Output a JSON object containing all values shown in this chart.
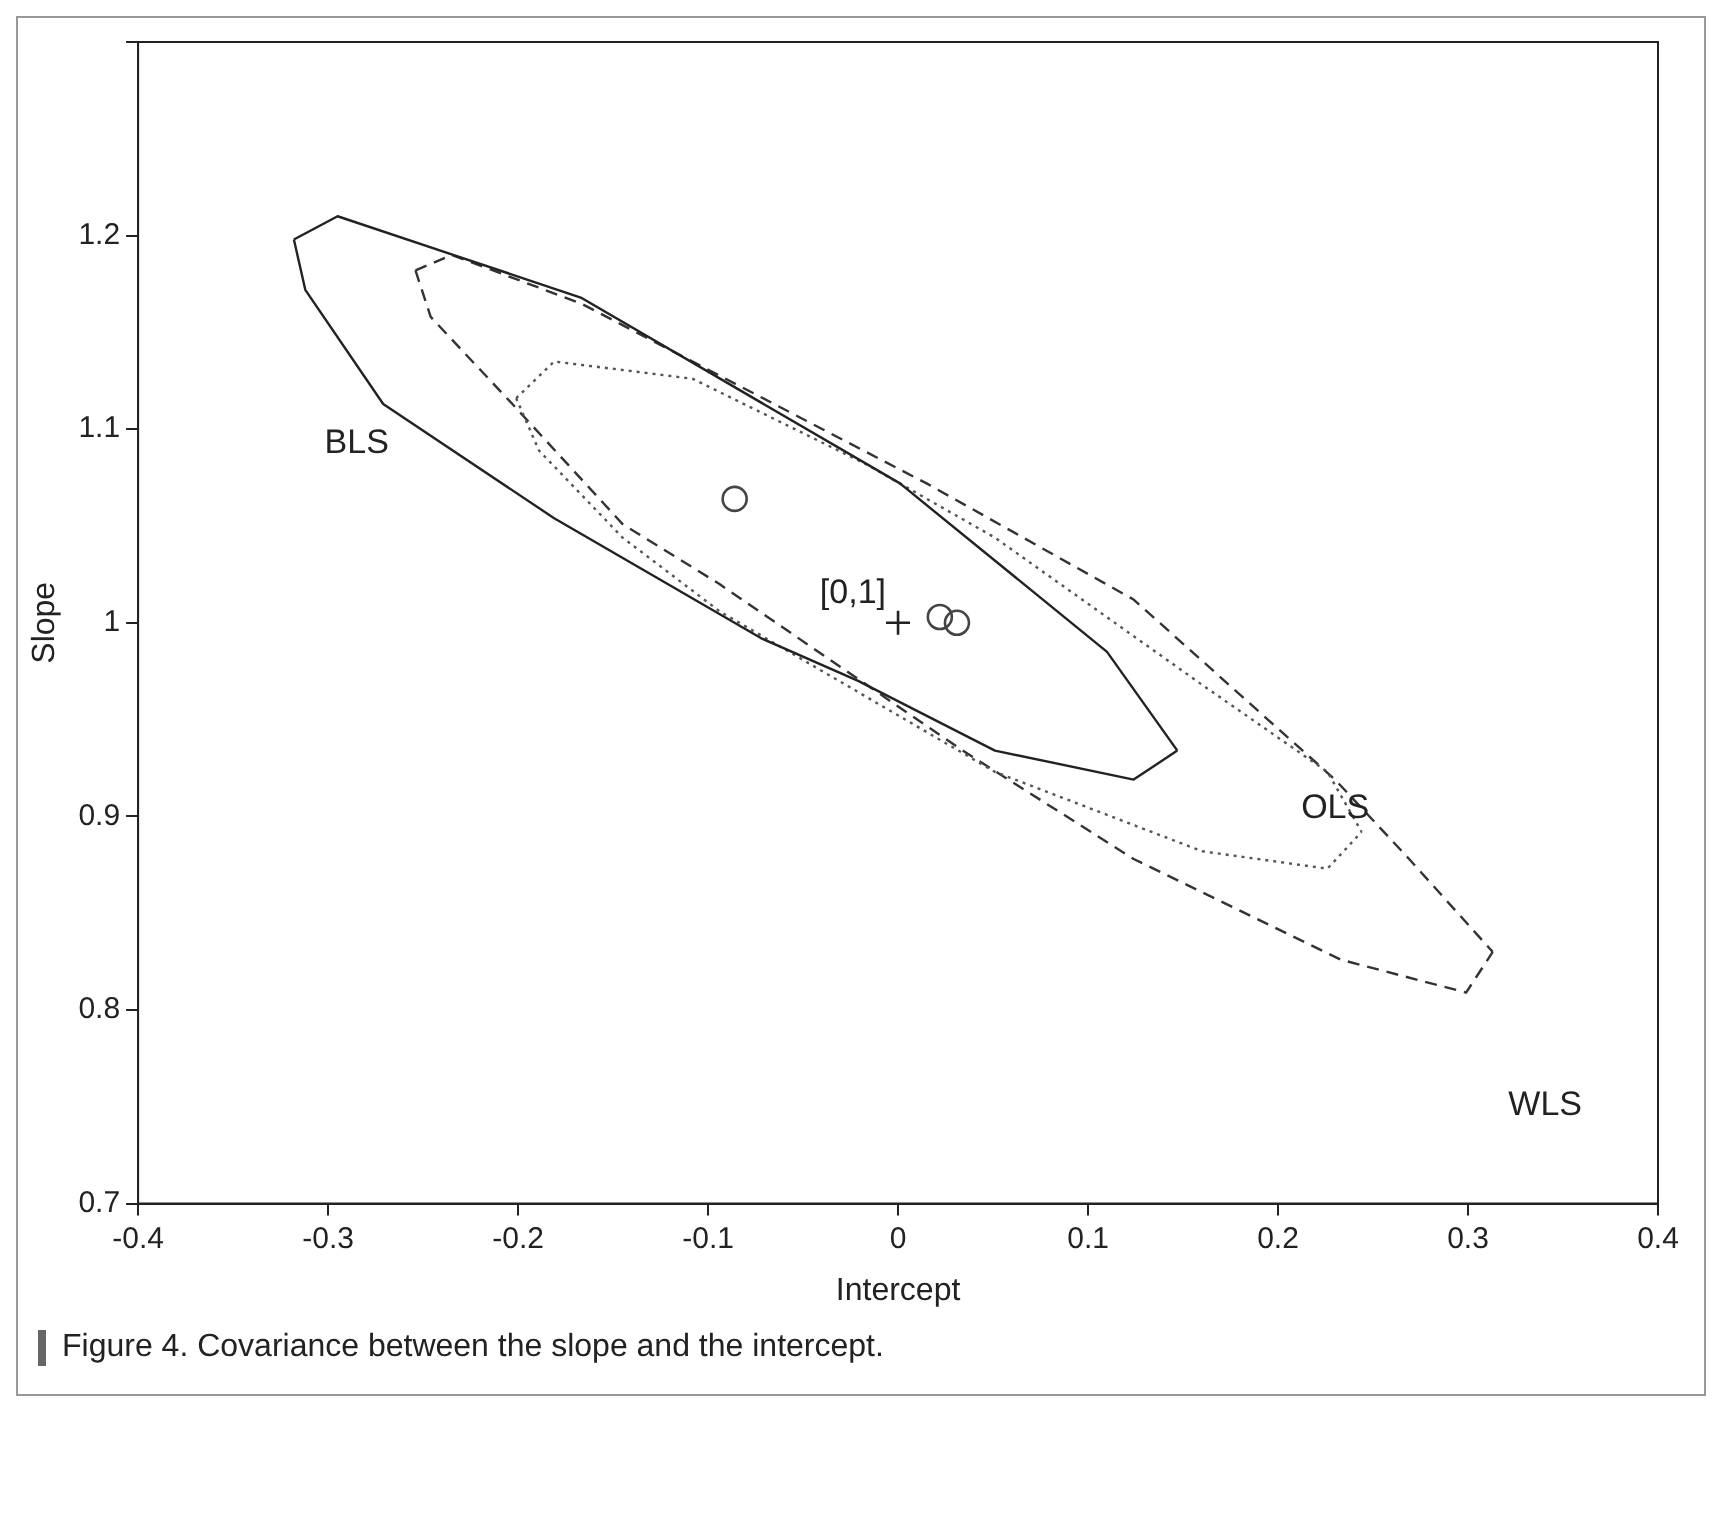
{
  "chart_data": {
    "type": "line",
    "xlabel": "Intercept",
    "ylabel": "Slope",
    "xlim": [
      -0.4,
      0.4
    ],
    "xticks": [
      -0.4,
      -0.3,
      -0.2,
      -0.1,
      0,
      0.1,
      0.2,
      0.3,
      0.4
    ],
    "ylim": [
      0.7,
      1.3
    ],
    "yticks": [
      0.7,
      0.8,
      0.9,
      1,
      1.1,
      1.2,
      {
        "value": 1.3,
        "label": null
      }
    ],
    "grid": false,
    "legend": false,
    "series": [
      {
        "line_style": "solid",
        "marker": "none",
        "color": "#222222",
        "x": [
          -0.318,
          -0.295,
          -0.167,
          0.001,
          0.11,
          0.147
        ],
        "values": [
          1.198,
          1.21,
          1.168,
          1.072,
          0.985,
          0.934
        ]
      },
      {
        "line_style": "solid",
        "marker": "none",
        "color": "#222222",
        "x": [
          -0.318,
          -0.312,
          -0.271,
          -0.181,
          -0.072,
          -0.021,
          0.051,
          0.124,
          0.147
        ],
        "values": [
          1.198,
          1.172,
          1.113,
          1.054,
          0.992,
          0.97,
          0.934,
          0.919,
          0.934
        ]
      },
      {
        "line_style": "dotted",
        "marker": "none",
        "color": "#555555",
        "x": [
          -0.201,
          -0.181,
          -0.108,
          -0.017,
          0.051,
          0.16,
          0.226,
          0.244
        ],
        "values": [
          1.116,
          1.135,
          1.126,
          1.082,
          1.044,
          0.968,
          0.923,
          0.892
        ]
      },
      {
        "line_style": "dotted",
        "marker": "none",
        "color": "#555555",
        "x": [
          -0.201,
          -0.189,
          -0.145,
          -0.094,
          0.051,
          0.16,
          0.226,
          0.244
        ],
        "values": [
          1.116,
          1.089,
          1.044,
          1.006,
          0.923,
          0.882,
          0.873,
          0.892
        ]
      },
      {
        "line_style": "dashed",
        "marker": "none",
        "color": "#333333",
        "x": [
          -0.254,
          -0.235,
          -0.167,
          0.015,
          0.124,
          0.23,
          0.269,
          0.313
        ],
        "values": [
          1.182,
          1.19,
          1.165,
          1.072,
          1.012,
          0.919,
          0.878,
          0.83
        ]
      },
      {
        "line_style": "dashed",
        "marker": "none",
        "color": "#333333",
        "x": [
          -0.254,
          -0.246,
          -0.203,
          -0.145,
          -0.094,
          0.034,
          0.124,
          0.233,
          0.299,
          0.313
        ],
        "values": [
          1.182,
          1.158,
          1.113,
          1.051,
          1.02,
          0.934,
          0.878,
          0.826,
          0.809,
          0.83
        ]
      },
      {
        "type": "scatter",
        "marker": "circle",
        "color": "#444444",
        "x": [
          -0.086,
          0.022,
          0.031
        ],
        "values": [
          1.064,
          1.003,
          1.0
        ]
      },
      {
        "type": "scatter",
        "marker": "cross",
        "color": "#222222",
        "x": [
          0
        ],
        "values": [
          1
        ]
      }
    ],
    "annotations": [
      {
        "text": "[0,1]",
        "x": 0,
        "y": 1
      },
      "BLS",
      "OLS",
      "WLS",
      "Figure 4. Covariance between the slope and the intercept."
    ]
  }
}
